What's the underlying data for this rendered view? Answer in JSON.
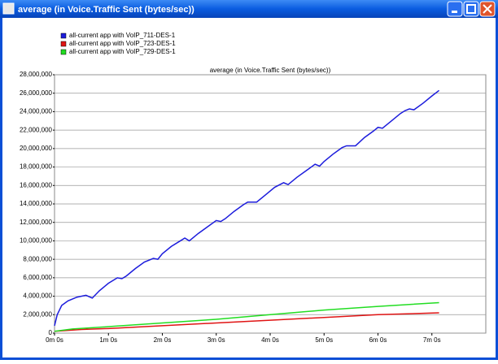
{
  "window": {
    "title": "average (in Voice.Traffic Sent (bytes/sec))"
  },
  "chart_data": {
    "type": "line",
    "title": "average (in Voice.Traffic Sent (bytes/sec))",
    "legend": "top-left",
    "grid": true,
    "xlim": [
      0,
      480
    ],
    "ylim": [
      0,
      28000000
    ],
    "xticks": [
      {
        "value": 0,
        "label": "0m 0s"
      },
      {
        "value": 60,
        "label": "1m 0s"
      },
      {
        "value": 120,
        "label": "2m 0s"
      },
      {
        "value": 180,
        "label": "3m 0s"
      },
      {
        "value": 240,
        "label": "4m 0s"
      },
      {
        "value": 300,
        "label": "5m 0s"
      },
      {
        "value": 360,
        "label": "6m 0s"
      },
      {
        "value": 420,
        "label": "7m 0s"
      }
    ],
    "yticks": [
      0,
      {
        "value": 2000000,
        "label": "2,000,000"
      },
      {
        "value": 4000000,
        "label": "4,000,000"
      },
      {
        "value": 6000000,
        "label": "6,000,000"
      },
      {
        "value": 8000000,
        "label": "8,000,000"
      },
      {
        "value": 10000000,
        "label": "10,000,000"
      },
      {
        "value": 12000000,
        "label": "12,000,000"
      },
      {
        "value": 14000000,
        "label": "14,000,000"
      },
      {
        "value": 16000000,
        "label": "16,000,000"
      },
      {
        "value": 18000000,
        "label": "18,000,000"
      },
      {
        "value": 20000000,
        "label": "20,000,000"
      },
      {
        "value": 22000000,
        "label": "22,000,000"
      },
      {
        "value": 24000000,
        "label": "24,000,000"
      },
      {
        "value": 26000000,
        "label": "26,000,000"
      },
      {
        "value": 28000000,
        "label": "28,000,000"
      }
    ],
    "series": [
      {
        "name": "all-current app with VoIP_711-DES-1",
        "color": "#1c1cdc",
        "x": [
          0,
          3,
          8,
          15,
          25,
          35,
          42,
          50,
          60,
          70,
          75,
          80,
          90,
          100,
          110,
          115,
          120,
          130,
          140,
          145,
          150,
          160,
          170,
          180,
          185,
          190,
          200,
          210,
          215,
          225,
          235,
          245,
          255,
          260,
          270,
          280,
          290,
          295,
          300,
          310,
          320,
          325,
          335,
          345,
          355,
          360,
          365,
          375,
          385,
          390,
          395,
          400,
          410,
          420,
          428
        ],
        "values": [
          800000,
          2000000,
          3000000,
          3500000,
          3900000,
          4100000,
          3800000,
          4600000,
          5400000,
          6000000,
          5900000,
          6200000,
          7000000,
          7700000,
          8100000,
          8000000,
          8600000,
          9400000,
          10000000,
          10300000,
          10000000,
          10800000,
          11500000,
          12200000,
          12100000,
          12400000,
          13200000,
          13900000,
          14200000,
          14200000,
          15000000,
          15800000,
          16300000,
          16100000,
          16900000,
          17600000,
          18300000,
          18100000,
          18600000,
          19400000,
          20100000,
          20300000,
          20300000,
          21200000,
          21900000,
          22300000,
          22200000,
          23000000,
          23800000,
          24100000,
          24300000,
          24200000,
          24900000,
          25700000,
          26300000
        ]
      },
      {
        "name": "all-current app with VoIP_723-DES-1",
        "color": "#e01414",
        "x": [
          0,
          30,
          60,
          120,
          180,
          240,
          300,
          360,
          428
        ],
        "values": [
          200000,
          400000,
          500000,
          800000,
          1100000,
          1400000,
          1700000,
          2000000,
          2200000
        ]
      },
      {
        "name": "all-current app with VoIP_729-DES-1",
        "color": "#22dd22",
        "x": [
          0,
          20,
          60,
          120,
          180,
          240,
          300,
          360,
          428
        ],
        "values": [
          200000,
          450000,
          700000,
          1100000,
          1500000,
          2000000,
          2500000,
          2900000,
          3300000
        ]
      }
    ]
  }
}
